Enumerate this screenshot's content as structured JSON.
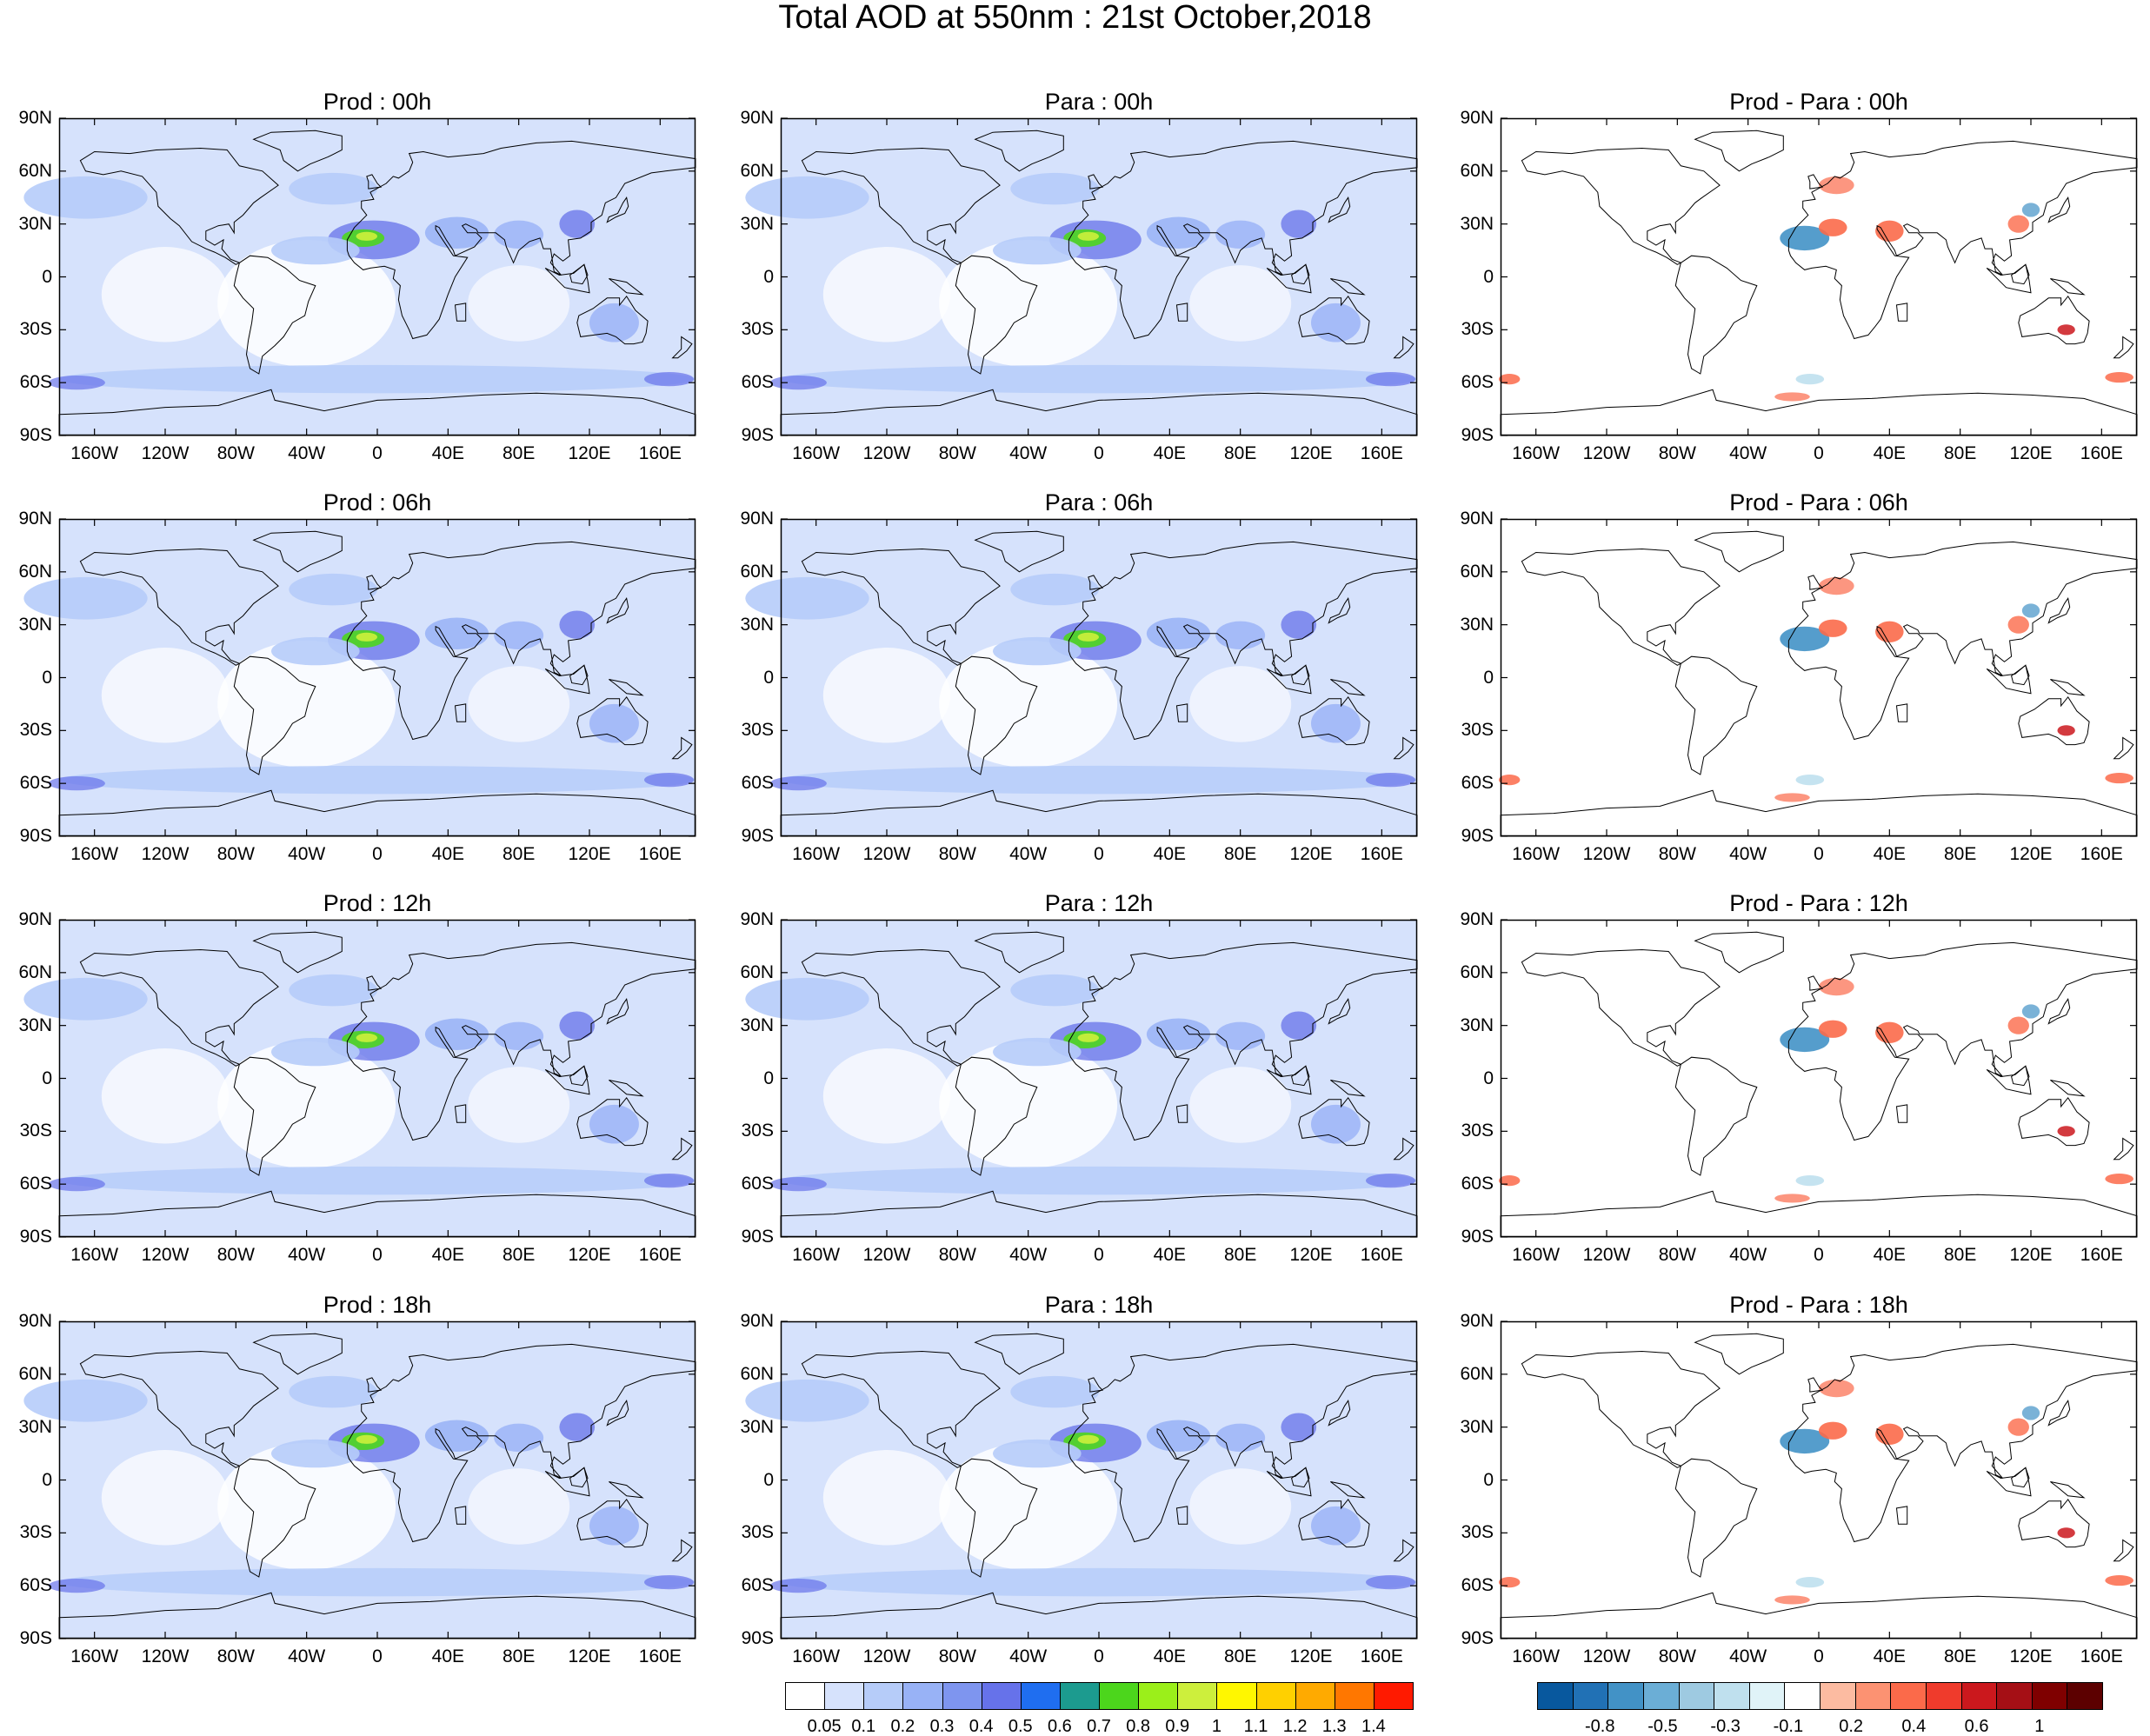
{
  "title": "Total AOD at 550nm : 21st October,2018",
  "panels": [
    {
      "title": "Prod : 00h",
      "kind": "aod"
    },
    {
      "title": "Para : 00h",
      "kind": "aod"
    },
    {
      "title": "Prod - Para : 00h",
      "kind": "diff"
    },
    {
      "title": "Prod : 06h",
      "kind": "aod"
    },
    {
      "title": "Para : 06h",
      "kind": "aod"
    },
    {
      "title": "Prod - Para : 06h",
      "kind": "diff"
    },
    {
      "title": "Prod : 12h",
      "kind": "aod"
    },
    {
      "title": "Para : 12h",
      "kind": "aod"
    },
    {
      "title": "Prod - Para : 12h",
      "kind": "diff"
    },
    {
      "title": "Prod : 18h",
      "kind": "aod"
    },
    {
      "title": "Para : 18h",
      "kind": "aod"
    },
    {
      "title": "Prod - Para : 18h",
      "kind": "diff"
    }
  ],
  "lat_labels": [
    "90N",
    "60N",
    "30N",
    "0",
    "30S",
    "60S",
    "90S"
  ],
  "lon_labels": [
    "160W",
    "120W",
    "80W",
    "40W",
    "0",
    "40E",
    "80E",
    "120E",
    "160E"
  ],
  "aod_colorbar": {
    "labels": [
      "0.05",
      "0.1",
      "0.2",
      "0.3",
      "0.4",
      "0.5",
      "0.6",
      "0.7",
      "0.8",
      "0.9",
      "1",
      "1.1",
      "1.2",
      "1.3",
      "1.4"
    ],
    "colors": [
      "#ffffff",
      "#d6e2fc",
      "#b6ccf9",
      "#98b2f6",
      "#7e95ef",
      "#6672ea",
      "#1f6ef0",
      "#1c9b8f",
      "#4cd61c",
      "#9bef1a",
      "#cdef3c",
      "#fff700",
      "#ffd000",
      "#ffaa00",
      "#ff7700",
      "#ff1a00"
    ]
  },
  "diff_colorbar": {
    "labels": [
      "-0.8",
      "-0.5",
      "-0.3",
      "-0.1",
      "0.2",
      "0.4",
      "0.6",
      "1"
    ],
    "colors": [
      "#08589e",
      "#2171b5",
      "#4292c6",
      "#6baed6",
      "#9ecae1",
      "#bfe0ee",
      "#e0f3f8",
      "#ffffff",
      "#fcbba1",
      "#fc9272",
      "#fb6a4a",
      "#ef3b2c",
      "#cb181d",
      "#a50f15",
      "#7f0000",
      "#5c0000"
    ]
  },
  "colors": {
    "land_outline": "#000000",
    "aod_background": "#d6e2fc",
    "aod_light": "#b6ccf9",
    "aod_mid": "#98b2f6",
    "aod_dark": "#6672ea",
    "dust_green": "#4cd61c",
    "dust_yellow": "#cdef3c",
    "diff_blue": "#4292c6",
    "diff_lightblue": "#bfe0ee",
    "diff_red": "#fb6a4a",
    "diff_darkred": "#cb181d"
  }
}
